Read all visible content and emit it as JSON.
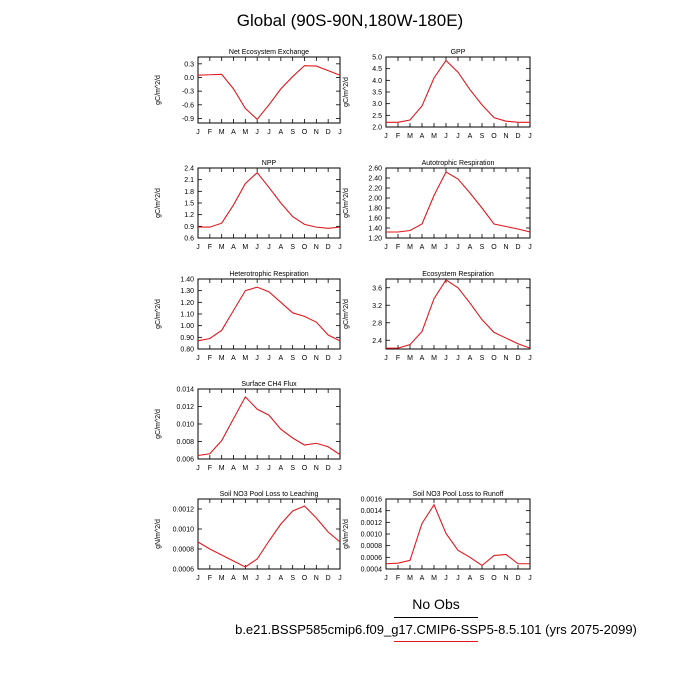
{
  "title": "Global (90S-90N,180W-180E)",
  "months": [
    "J",
    "F",
    "M",
    "A",
    "M",
    "J",
    "J",
    "A",
    "S",
    "O",
    "N",
    "D",
    "J"
  ],
  "series_color": "#e0191e",
  "legend": {
    "obs_label": "No Obs",
    "case_label": "b.e21.BSSP585cmip6.f09_g17.CMIP6-SSP5-8.5.101 (yrs 2075-2099)",
    "case_color": "#e0191e"
  },
  "chart_data": [
    {
      "type": "line",
      "title": "Net Ecosystem Exchange",
      "ylabel": "gC/m^2/d",
      "ylim": [
        -1.0,
        0.45
      ],
      "yticks": [
        0.3,
        0.0,
        -0.3,
        -0.6,
        -0.9
      ],
      "ytick_labels": [
        "0.3",
        "0.0",
        "-0.3",
        "-0.6",
        "-0.9"
      ],
      "values": [
        0.05,
        0.06,
        0.07,
        -0.25,
        -0.68,
        -0.92,
        -0.6,
        -0.25,
        0.02,
        0.26,
        0.25,
        0.15,
        0.05
      ]
    },
    {
      "type": "line",
      "title": "GPP",
      "ylabel": "gC/m^2/d",
      "ylim": [
        2.0,
        5.0
      ],
      "yticks": [
        2.0,
        2.5,
        3.0,
        3.5,
        4.0,
        4.5,
        5.0
      ],
      "ytick_labels": [
        "2.0",
        "2.5",
        "3.0",
        "3.5",
        "4.0",
        "4.5",
        "5.0"
      ],
      "values": [
        2.2,
        2.2,
        2.3,
        2.9,
        4.1,
        4.85,
        4.35,
        3.6,
        2.95,
        2.4,
        2.25,
        2.2,
        2.2
      ]
    },
    {
      "type": "line",
      "title": "NPP",
      "ylabel": "gC/m^2/d",
      "ylim": [
        0.6,
        2.4
      ],
      "yticks": [
        0.6,
        0.9,
        1.2,
        1.5,
        1.8,
        2.1,
        2.4
      ],
      "ytick_labels": [
        "0.6",
        "0.9",
        "1.2",
        "1.5",
        "1.8",
        "2.1",
        "2.4"
      ],
      "values": [
        0.88,
        0.88,
        0.98,
        1.45,
        2.0,
        2.28,
        1.9,
        1.5,
        1.15,
        0.95,
        0.88,
        0.85,
        0.88
      ]
    },
    {
      "type": "line",
      "title": "Autotrophic Respiration",
      "ylabel": "gC/m^2/d",
      "ylim": [
        1.2,
        2.6
      ],
      "yticks": [
        1.2,
        1.4,
        1.6,
        1.8,
        2.0,
        2.2,
        2.4,
        2.6
      ],
      "ytick_labels": [
        "1.20",
        "1.40",
        "1.60",
        "1.80",
        "2.00",
        "2.20",
        "2.40",
        "2.60"
      ],
      "values": [
        1.32,
        1.32,
        1.35,
        1.48,
        2.05,
        2.52,
        2.38,
        2.1,
        1.8,
        1.48,
        1.43,
        1.38,
        1.32
      ]
    },
    {
      "type": "line",
      "title": "Heterotrophic Respiration",
      "ylabel": "gC/m^2/d",
      "ylim": [
        0.8,
        1.4
      ],
      "yticks": [
        0.8,
        0.9,
        1.0,
        1.1,
        1.2,
        1.3,
        1.4
      ],
      "ytick_labels": [
        "0.80",
        "0.90",
        "1.00",
        "1.10",
        "1.20",
        "1.30",
        "1.40"
      ],
      "values": [
        0.87,
        0.89,
        0.96,
        1.13,
        1.3,
        1.33,
        1.29,
        1.2,
        1.11,
        1.08,
        1.03,
        0.92,
        0.87
      ]
    },
    {
      "type": "line",
      "title": "Ecosystem Respiration",
      "ylabel": "gC/m^2/d",
      "ylim": [
        2.2,
        3.8
      ],
      "yticks": [
        2.4,
        2.8,
        3.2,
        3.6
      ],
      "ytick_labels": [
        "2.4",
        "2.8",
        "3.2",
        "3.6"
      ],
      "values": [
        2.22,
        2.22,
        2.3,
        2.6,
        3.35,
        3.78,
        3.6,
        3.25,
        2.87,
        2.58,
        2.45,
        2.32,
        2.22
      ]
    },
    {
      "type": "line",
      "title": "Surface CH4 Flux",
      "ylabel": "gC/m^2/d",
      "ylim": [
        0.006,
        0.014
      ],
      "yticks": [
        0.006,
        0.008,
        0.01,
        0.012,
        0.014
      ],
      "ytick_labels": [
        "0.006",
        "0.008",
        "0.010",
        "0.012",
        "0.014"
      ],
      "values": [
        0.0064,
        0.0066,
        0.0081,
        0.0106,
        0.0131,
        0.0117,
        0.011,
        0.0094,
        0.0084,
        0.0076,
        0.0078,
        0.0074,
        0.0065
      ]
    },
    {
      "type": "line",
      "title": "Soil NO3 Pool Loss to Leaching",
      "ylabel": "gN/m^2/d",
      "ylim": [
        0.0006,
        0.0013
      ],
      "yticks": [
        0.0006,
        0.0008,
        0.001,
        0.0012
      ],
      "ytick_labels": [
        "0.0006",
        "0.0008",
        "0.0010",
        "0.0012"
      ],
      "values": [
        0.00087,
        0.0008,
        0.00074,
        0.00068,
        0.00062,
        0.0007,
        0.00088,
        0.00105,
        0.00118,
        0.00123,
        0.00111,
        0.00097,
        0.00087
      ]
    },
    {
      "type": "line",
      "title": "Soil NO3 Pool Loss to Runoff",
      "ylabel": "gN/m^2/d",
      "ylim": [
        0.0004,
        0.0016
      ],
      "yticks": [
        0.0004,
        0.0006,
        0.0008,
        0.001,
        0.0012,
        0.0014,
        0.0016
      ],
      "ytick_labels": [
        "0.0004",
        "0.0006",
        "0.0008",
        "0.0010",
        "0.0012",
        "0.0014",
        "0.0016"
      ],
      "values": [
        0.00049,
        0.0005,
        0.00055,
        0.00118,
        0.0015,
        0.00101,
        0.00072,
        0.0006,
        0.00046,
        0.00063,
        0.00065,
        0.00049,
        0.00049
      ]
    }
  ]
}
